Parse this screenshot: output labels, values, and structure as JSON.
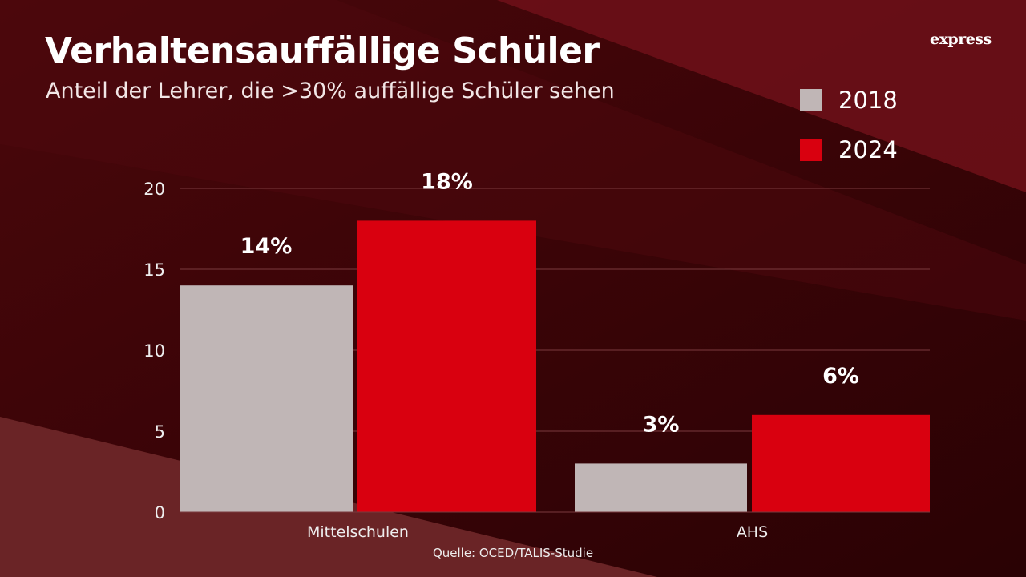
{
  "title": "Verhaltensauffällige Schüler",
  "subtitle": "Anteil der Lehrer, die >30% auffällige Schüler sehen",
  "logo": "express",
  "source": "Quelle: OCED/TALIS-Studie",
  "colors": {
    "s2018": "#c0b6b6",
    "s2024": "#d9000f"
  },
  "chart_data": {
    "type": "bar",
    "title": "Verhaltensauffällige Schüler",
    "subtitle": "Anteil der Lehrer, die >30% auffällige Schüler sehen",
    "categories": [
      "Mittelschulen",
      "AHS"
    ],
    "series": [
      {
        "name": "2018",
        "values": [
          14,
          3
        ],
        "labels": [
          "14%",
          "3%"
        ]
      },
      {
        "name": "2024",
        "values": [
          18,
          6
        ],
        "labels": [
          "18%",
          "6%"
        ]
      }
    ],
    "ylim": [
      0,
      20
    ],
    "yticks": [
      "0",
      "5",
      "10",
      "15",
      "20"
    ],
    "grid": true,
    "legend": "top-right",
    "xlabel": "",
    "ylabel": ""
  }
}
